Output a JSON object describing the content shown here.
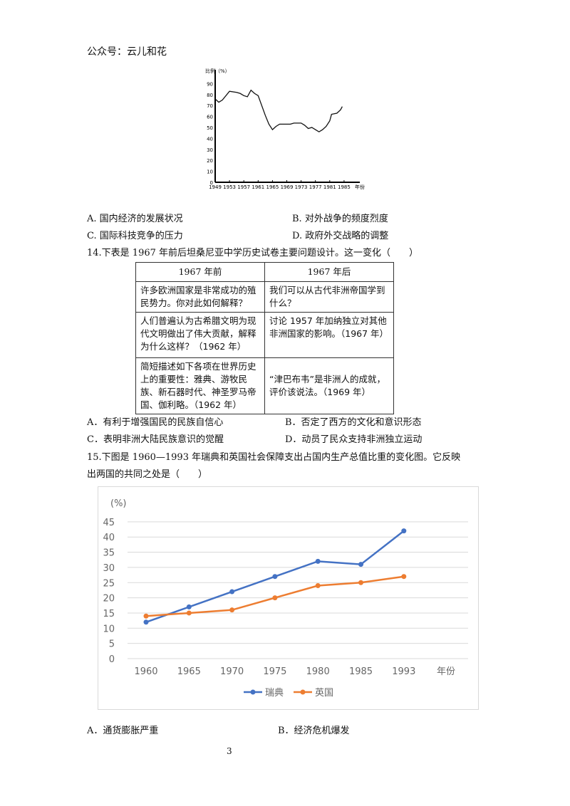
{
  "header": "公众号：云儿和花",
  "q13": {
    "options": [
      "A. 国内经济的发展状况",
      "B. 对外战争的频度烈度",
      "C. 国际科技竞争的压力",
      "D. 政府外交战略的调整"
    ]
  },
  "q14": {
    "stem": "14.下表是 1967 年前后坦桑尼亚中学历史试卷主要问题设计。这一变化（　　）",
    "table": {
      "headers": [
        "1967 年前",
        "1967 年后"
      ],
      "rows": [
        [
          "许多欧洲国家是非常成功的殖民势力。你对此如何解释？",
          "我们可以从古代非洲帝国学到什么？"
        ],
        [
          "人们普遍认为古希腊文明为现代文明做出了伟大贡献，解释为什么这样？（1962 年）",
          "讨论 1957 年加纳独立对其他非洲国家的影响。（1967 年）"
        ],
        [
          "简短描述如下各项在世界历史上的重要性：雅典、游牧民族、新石器时代、神圣罗马帝国、伽利略。（1962 年）",
          "“津巴布韦”是非洲人的成就，评价该说法。（1969 年）"
        ]
      ]
    },
    "options": [
      "A．有利于增强国民的民族自信心",
      "B．否定了西方的文化和意识形态",
      "C．表明非洲大陆民族意识的觉醒",
      "D．动员了民众支持非洲独立运动"
    ]
  },
  "q15": {
    "stem_line1": "15.下图是 1960—1993 年瑞典和英国社会保障支出占国内生产总值比重的变化图。它反映",
    "stem_line2": "出两国的共同之处是（　　）",
    "options": [
      "A．通货膨胀严重",
      "B．经济危机爆发"
    ]
  },
  "page_number": "3",
  "chart_data": [
    {
      "type": "line",
      "ylabel": "比例（%）",
      "xlabel": "年份",
      "ylim": [
        0,
        90
      ],
      "yticks": [
        "0",
        "10",
        "20",
        "30",
        "40",
        "50",
        "60",
        "70",
        "80",
        "90"
      ],
      "xticks": [
        "1949",
        "1953",
        "1957",
        "1961",
        "1965",
        "1969",
        "1973",
        "1977",
        "1981",
        "1985"
      ],
      "x": [
        1949,
        1950,
        1951,
        1953,
        1955,
        1956,
        1957,
        1958,
        1959,
        1960,
        1961,
        1962,
        1963,
        1964,
        1965,
        1966,
        1967,
        1970,
        1971,
        1973,
        1974,
        1975,
        1976,
        1977,
        1978,
        1979,
        1980,
        1981,
        1981.5,
        1983,
        1984,
        1984.5
      ],
      "values": [
        76,
        73,
        75,
        83,
        82,
        81,
        79,
        78,
        84,
        81,
        79,
        70,
        61,
        53,
        48,
        51,
        53,
        53,
        54,
        54,
        52,
        49,
        50,
        48,
        46,
        48,
        51,
        56,
        62,
        63,
        66,
        69
      ]
    },
    {
      "type": "line",
      "ylabel": "(%)",
      "xlabel": "年份",
      "ylim": [
        0,
        45
      ],
      "yticks": [
        "0",
        "5",
        "10",
        "15",
        "20",
        "25",
        "30",
        "35",
        "40",
        "45"
      ],
      "categories": [
        "1960",
        "1965",
        "1970",
        "1975",
        "1980",
        "1985",
        "1993"
      ],
      "legend": "bottom",
      "series": [
        {
          "name": "瑞典",
          "color": "#4472c4",
          "values": [
            12,
            17,
            22,
            27,
            32,
            31,
            42
          ]
        },
        {
          "name": "英国",
          "color": "#ed7d31",
          "values": [
            14,
            15,
            16,
            20,
            24,
            25,
            27
          ]
        }
      ]
    }
  ]
}
